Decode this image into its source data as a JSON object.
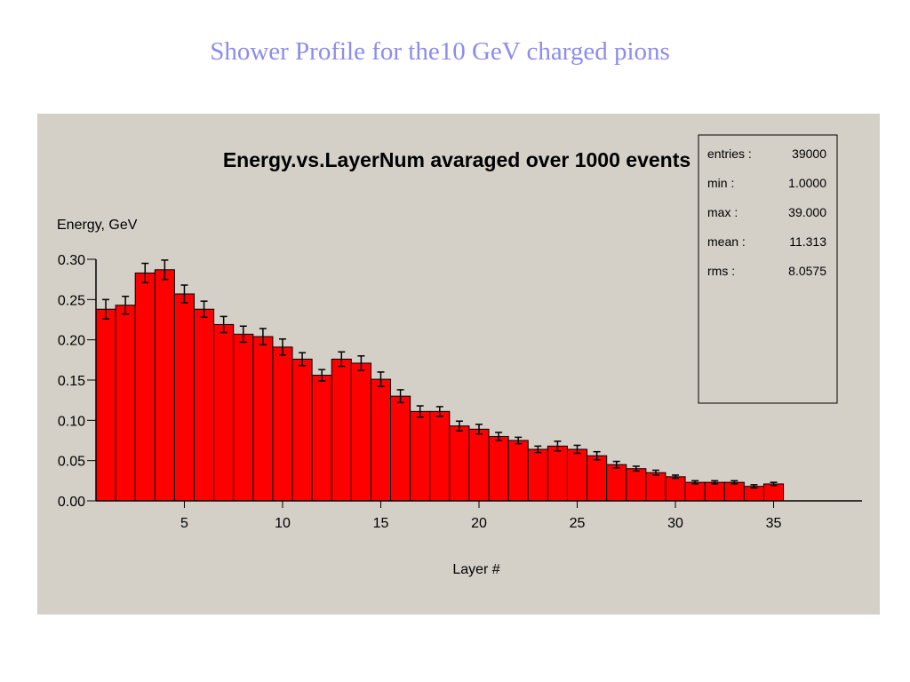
{
  "slide": {
    "title": "Shower Profile for the10 GeV charged pions"
  },
  "stats": {
    "rows": [
      {
        "label": "entries :",
        "value": "39000"
      },
      {
        "label": "min :",
        "value": "1.0000"
      },
      {
        "label": "max :",
        "value": "39.000"
      },
      {
        "label": "mean :",
        "value": "11.313"
      },
      {
        "label": "rms :",
        "value": "8.0575"
      }
    ]
  },
  "chart_data": {
    "type": "bar",
    "title": "Energy.vs.LayerNum avaraged over 1000 events",
    "xlabel": "Layer #",
    "ylabel": "Energy, GeV",
    "xlim": [
      0.5,
      39.5
    ],
    "ylim": [
      0,
      0.3
    ],
    "x_ticks": [
      5,
      10,
      15,
      20,
      25,
      30,
      35
    ],
    "y_ticks": [
      "0.00",
      "0.05",
      "0.10",
      "0.15",
      "0.20",
      "0.25",
      "0.30"
    ],
    "bar_color": "#ff0000",
    "x": [
      1,
      2,
      3,
      4,
      5,
      6,
      7,
      8,
      9,
      10,
      11,
      12,
      13,
      14,
      15,
      16,
      17,
      18,
      19,
      20,
      21,
      22,
      23,
      24,
      25,
      26,
      27,
      28,
      29,
      30,
      31,
      32,
      33,
      34,
      35
    ],
    "values": [
      0.238,
      0.243,
      0.283,
      0.287,
      0.257,
      0.238,
      0.219,
      0.207,
      0.204,
      0.191,
      0.176,
      0.156,
      0.176,
      0.171,
      0.151,
      0.13,
      0.111,
      0.111,
      0.093,
      0.089,
      0.08,
      0.075,
      0.064,
      0.068,
      0.064,
      0.056,
      0.045,
      0.04,
      0.035,
      0.03,
      0.023,
      0.023,
      0.023,
      0.018,
      0.021
    ],
    "errors": [
      0.012,
      0.011,
      0.012,
      0.012,
      0.011,
      0.01,
      0.01,
      0.01,
      0.01,
      0.01,
      0.008,
      0.007,
      0.009,
      0.009,
      0.009,
      0.008,
      0.007,
      0.006,
      0.006,
      0.006,
      0.005,
      0.004,
      0.004,
      0.006,
      0.005,
      0.005,
      0.004,
      0.003,
      0.003,
      0.002,
      0.002,
      0.002,
      0.002,
      0.002,
      0.002
    ]
  }
}
